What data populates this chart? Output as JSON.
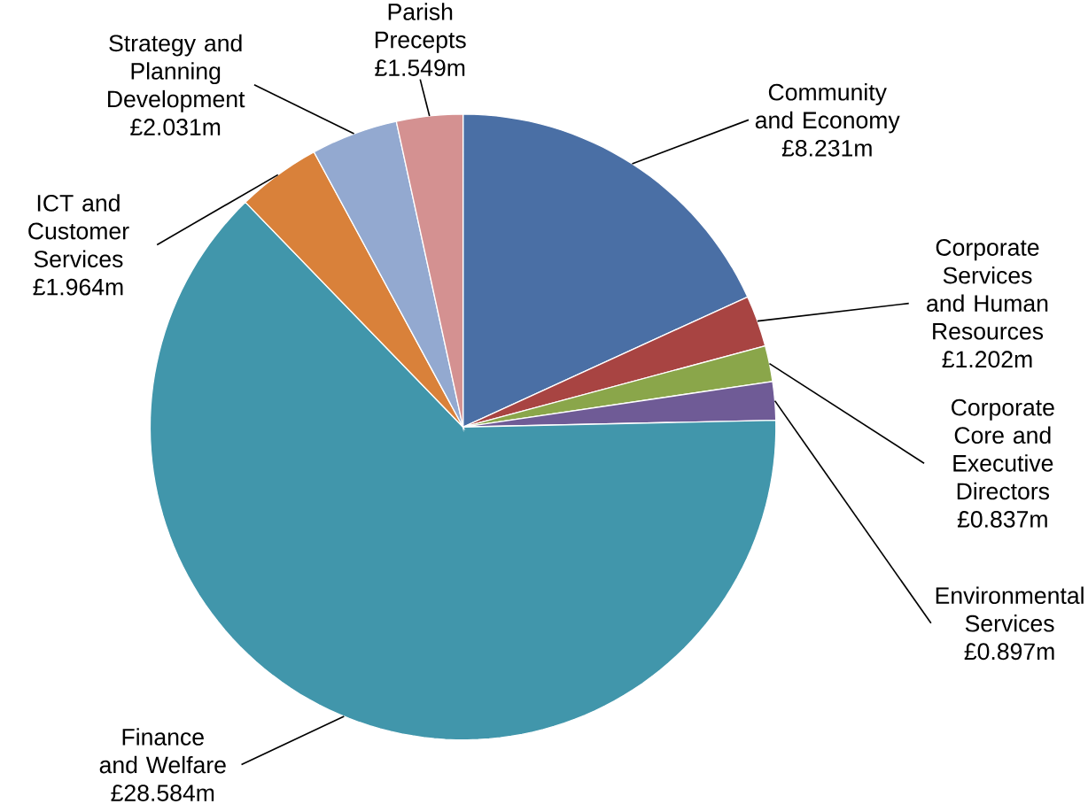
{
  "chart_data": {
    "type": "pie",
    "categories": [
      "Community and Economy",
      "Corporate Services and Human Resources",
      "Corporate Core and Executive Directors",
      "Environmental Services",
      "Finance and Welfare",
      "ICT and Customer Services",
      "Strategy and Planning Development",
      "Parish Precepts"
    ],
    "values": [
      8.231,
      1.202,
      0.837,
      0.897,
      28.584,
      1.964,
      2.031,
      1.549
    ],
    "value_labels": [
      "£8.231m",
      "£1.202m",
      "£0.837m",
      "£0.897m",
      "£28.584m",
      "£1.964m",
      "£2.031m",
      "£1.549m"
    ],
    "colors": [
      "#4a6fa5",
      "#a84442",
      "#8aa64a",
      "#6f5b96",
      "#4196ab",
      "#d9813a",
      "#93a9d0",
      "#d49191"
    ]
  }
}
